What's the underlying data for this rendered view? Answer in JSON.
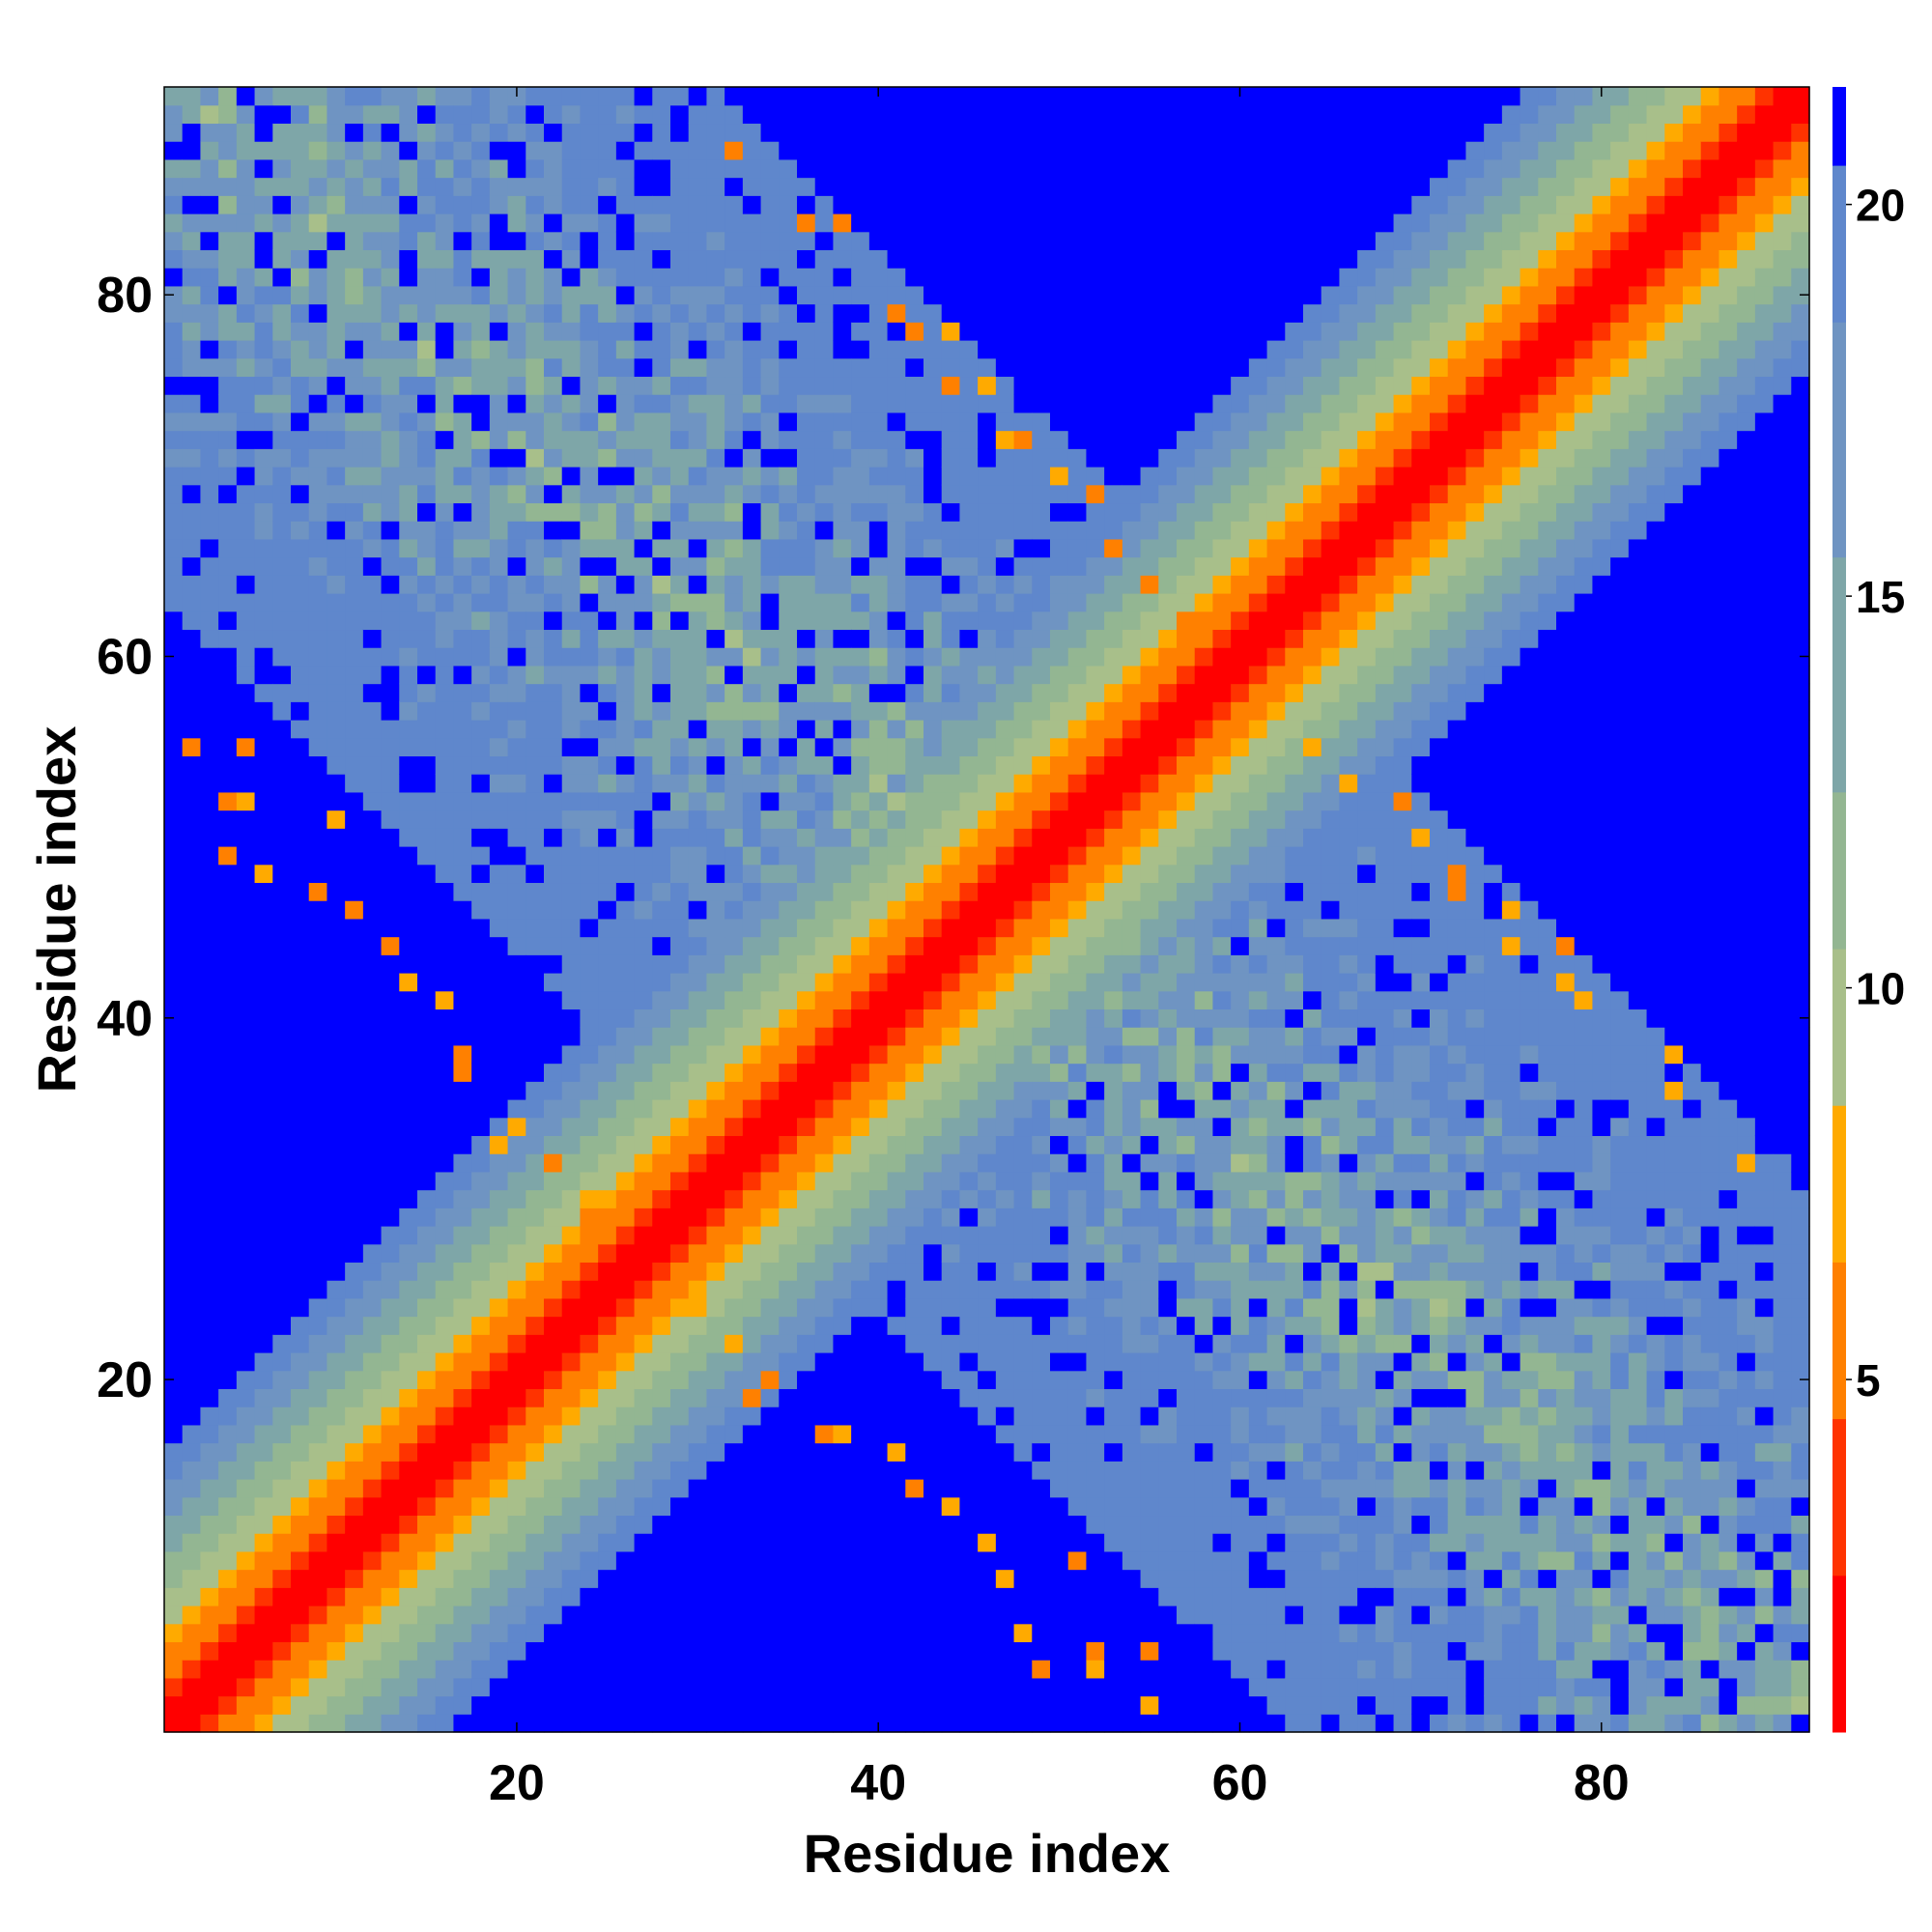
{
  "chart_data": {
    "type": "heatmap",
    "title": "",
    "xlabel": "Residue index",
    "ylabel": "Residue index",
    "n_residues": 91,
    "xlim": [
      1,
      91
    ],
    "ylim": [
      1,
      91
    ],
    "x_ticks": [
      20,
      40,
      60,
      80
    ],
    "y_ticks": [
      20,
      40,
      60,
      80
    ],
    "colorbar": {
      "ticks": [
        5,
        10,
        15,
        20
      ],
      "range": [
        0.5,
        21.5
      ],
      "levels": [
        {
          "min": 0.5,
          "max": 2.5,
          "color": "#ff0000"
        },
        {
          "min": 2.5,
          "max": 4.5,
          "color": "#ff3300"
        },
        {
          "min": 4.5,
          "max": 6.5,
          "color": "#ff8000"
        },
        {
          "min": 6.5,
          "max": 8.5,
          "color": "#ffaa00"
        },
        {
          "min": 8.5,
          "max": 10.5,
          "color": "#a8bf8a"
        },
        {
          "min": 10.5,
          "max": 12.5,
          "color": "#93b692"
        },
        {
          "min": 12.5,
          "max": 15.5,
          "color": "#7ea6a8"
        },
        {
          "min": 15.5,
          "max": 18.5,
          "color": "#6f94c2"
        },
        {
          "min": 18.5,
          "max": 20.5,
          "color": "#5f87cc"
        },
        {
          "min": 20.5,
          "max": 21.5,
          "color": "#0000ff"
        }
      ]
    },
    "structure": {
      "description_of_values": "Pairwise residue distance map; values increase away from the main diagonal and saturate at 21 (blue) for distant pairs.",
      "main_diagonal_band": {
        "saturation_offset": 16,
        "value_at_diagonal": 1,
        "value_per_residue_offset": 1.25
      },
      "anti_diagonal_band": {
        "sum_center": 93,
        "half_width": 30,
        "base_value": 8.5,
        "value_per_offset": 0.38
      },
      "hot_contacts": [
        [
          32,
          88
        ],
        [
          36,
          84
        ],
        [
          38,
          84
        ],
        [
          41,
          79
        ],
        [
          44,
          78
        ],
        [
          46,
          75
        ],
        [
          47,
          72
        ],
        [
          50,
          70
        ],
        [
          53,
          66
        ],
        [
          57,
          62
        ],
        [
          5,
          55
        ],
        [
          5,
          52
        ],
        [
          10,
          51
        ],
        [
          4,
          49
        ],
        [
          9,
          47
        ],
        [
          13,
          44
        ],
        [
          16,
          41
        ],
        [
          17,
          37
        ],
        [
          19,
          33
        ],
        [
          22,
          32
        ],
        [
          24,
          29
        ],
        [
          64,
          55
        ],
        [
          69,
          52
        ],
        [
          72,
          48
        ],
        [
          75,
          44
        ],
        [
          78,
          42
        ],
        [
          84,
          36
        ],
        [
          88,
          32
        ],
        [
          30,
          24
        ],
        [
          34,
          20
        ],
        [
          38,
          17
        ],
        [
          42,
          14
        ],
        [
          46,
          11
        ],
        [
          48,
          6
        ],
        [
          52,
          4
        ],
        [
          55,
          2
        ]
      ]
    }
  }
}
